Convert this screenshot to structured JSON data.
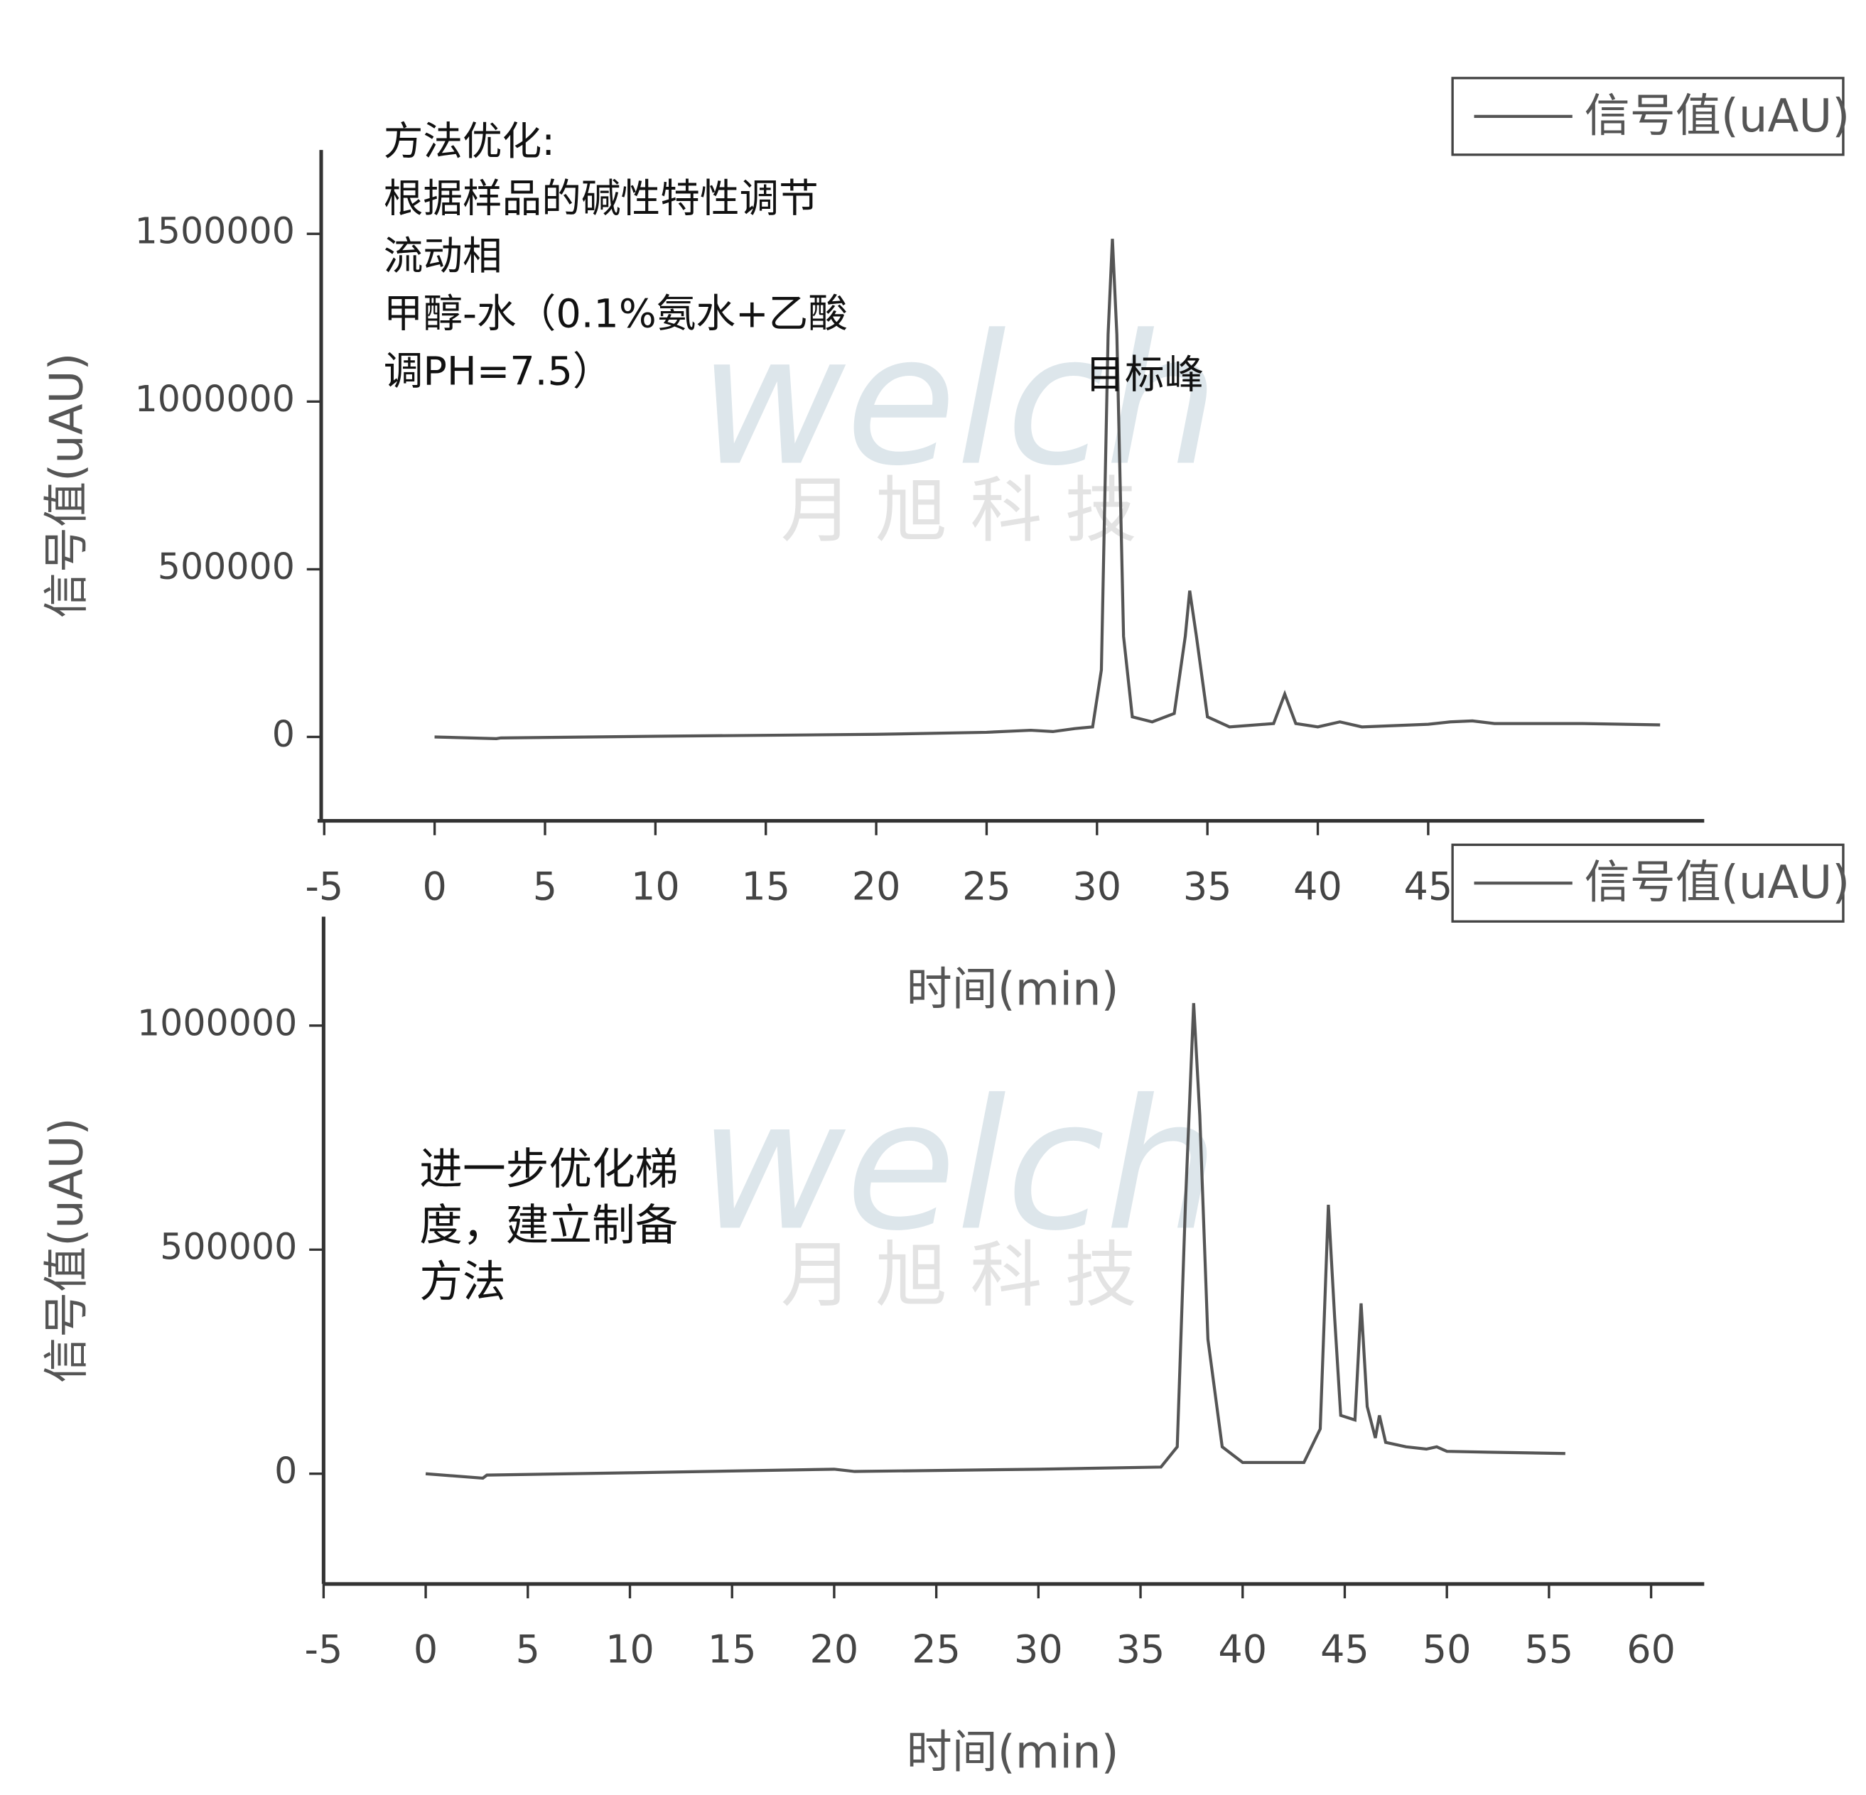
{
  "watermark": {
    "logo": "welch",
    "text": "月 旭 科 技"
  },
  "chart_data": [
    {
      "type": "line",
      "x_label": "时间(min)",
      "y_label": "信号值(uAU)",
      "annotations": [
        "方法优化:",
        "根据样品的碱性特性调节",
        "流动相",
        "甲醇-水（0.1%氨水+乙酸",
        "调PH=7.5）"
      ],
      "peak_label": "目标峰",
      "xlim": [
        -5.3,
        57.5
      ],
      "xticks": [
        -5,
        0,
        5,
        10,
        15,
        20,
        25,
        30,
        35,
        40,
        45
      ],
      "ylim": [
        -250000,
        1750000
      ],
      "yticks": [
        0,
        500000,
        1000000,
        1500000
      ],
      "legend": "top-right",
      "x": [
        0,
        2.8,
        3,
        10,
        20,
        25,
        27,
        28,
        29,
        29.8,
        30.2,
        30.5,
        30.7,
        30.9,
        31.2,
        31.6,
        32.5,
        33.5,
        34,
        34.2,
        34.5,
        35,
        36,
        38,
        38.5,
        39,
        40,
        41,
        42,
        45,
        46,
        47,
        48,
        52,
        55.5
      ],
      "series": [
        {
          "name": "信号值(uAU)",
          "color": "#555555",
          "values": [
            0,
            -5000,
            -3000,
            2000,
            8000,
            14000,
            20000,
            16000,
            25000,
            30000,
            200000,
            1200000,
            1485000,
            1200000,
            300000,
            60000,
            45000,
            70000,
            300000,
            436000,
            300000,
            60000,
            30000,
            40000,
            128000,
            40000,
            30000,
            45000,
            30000,
            38000,
            45000,
            48000,
            40000,
            40000,
            36000
          ]
        }
      ]
    },
    {
      "type": "line",
      "x_label": "时间(min)",
      "y_label": "信号值(uAU)",
      "annotations": [
        "进一步优化梯",
        "度，建立制备",
        "方法"
      ],
      "xlim": [
        -5,
        62.6
      ],
      "xticks": [
        -5,
        0,
        5,
        10,
        15,
        20,
        25,
        30,
        35,
        40,
        45,
        50,
        55,
        60
      ],
      "ylim": [
        -246000,
        1243000
      ],
      "yticks": [
        0,
        500000,
        1000000
      ],
      "legend": "top-right",
      "x": [
        0,
        2.8,
        3,
        10,
        20,
        21,
        30,
        36,
        36.8,
        37.2,
        37.6,
        37.9,
        38.3,
        39,
        40,
        43,
        43.8,
        44.2,
        44.5,
        44.8,
        45.5,
        45.8,
        46.1,
        46.5,
        46.7,
        47,
        48,
        49,
        49.5,
        50,
        52,
        55.8
      ],
      "series": [
        {
          "name": "信号值(uAU)",
          "color": "#555555",
          "values": [
            0,
            -10000,
            -3000,
            2000,
            10000,
            5000,
            10000,
            15000,
            60000,
            600000,
            1050000,
            800000,
            300000,
            60000,
            25000,
            25000,
            100000,
            600000,
            350000,
            130000,
            120000,
            380000,
            150000,
            80000,
            130000,
            70000,
            60000,
            55000,
            60000,
            50000,
            48000,
            45000
          ]
        }
      ]
    }
  ]
}
